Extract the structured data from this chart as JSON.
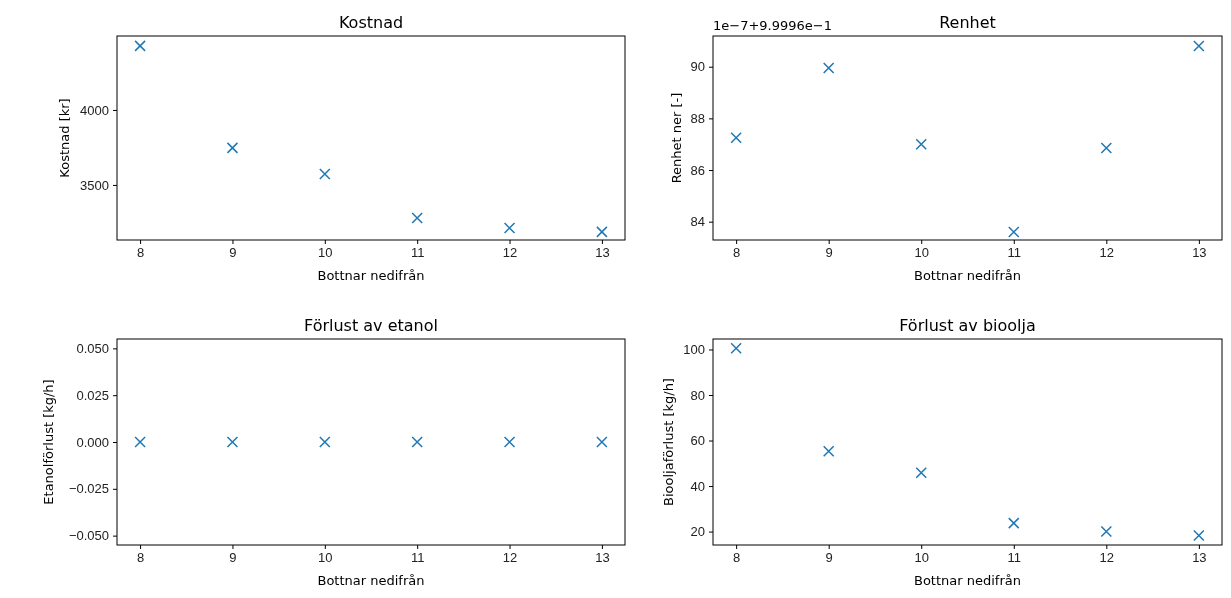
{
  "chart_data": [
    {
      "type": "scatter",
      "title": "Kostnad",
      "xlabel": "Bottnar nedifrån",
      "ylabel": "Kostnad [kr]",
      "x": [
        8,
        9,
        10,
        11,
        12,
        13
      ],
      "marker": "cross",
      "grid": false,
      "series": [
        {
          "color": "#1f77b4",
          "values": [
            4427,
            3747,
            3573,
            3280,
            3213,
            3187
          ]
        }
      ],
      "xlim": [
        7.75,
        13.25
      ],
      "xticks": [
        8,
        9,
        10,
        11,
        12,
        13
      ],
      "ylim": [
        3133,
        4493
      ],
      "yticks": [
        3500,
        4000
      ]
    },
    {
      "type": "scatter",
      "title": "Renhet",
      "xlabel": "Bottnar nedifrån",
      "ylabel": "Renhet ner [-]",
      "x": [
        8,
        9,
        10,
        11,
        12,
        13
      ],
      "marker": "cross",
      "grid": false,
      "annotations": [
        "1e−7+9.9996e−1"
      ],
      "series": [
        {
          "color": "#1f77b4",
          "values": [
            87.25,
            89.95,
            87.0,
            83.6,
            86.85,
            90.8
          ]
        }
      ],
      "xlim": [
        7.75,
        13.25
      ],
      "xticks": [
        8,
        9,
        10,
        11,
        12,
        13
      ],
      "ylim": [
        83.29,
        91.19
      ],
      "yticks": [
        84,
        86,
        88,
        90
      ]
    },
    {
      "type": "scatter",
      "title": "Förlust av etanol",
      "xlabel": "Bottnar nedifrån",
      "ylabel": "Etanolförlust [kg/h]",
      "x": [
        8,
        9,
        10,
        11,
        12,
        13
      ],
      "marker": "cross",
      "grid": false,
      "series": [
        {
          "color": "#1f77b4",
          "values": [
            0,
            0,
            0,
            0,
            0,
            0
          ]
        }
      ],
      "xlim": [
        7.75,
        13.25
      ],
      "xticks": [
        8,
        9,
        10,
        11,
        12,
        13
      ],
      "ylim": [
        -0.055,
        0.055
      ],
      "yticks": [
        {
          "value": -0.05,
          "label": "−0.050"
        },
        {
          "value": -0.025,
          "label": "−0.025"
        },
        {
          "value": 0,
          "label": "0.000"
        },
        {
          "value": 0.025,
          "label": "0.025"
        },
        {
          "value": 0.05,
          "label": "0.050"
        }
      ]
    },
    {
      "type": "scatter",
      "title": "Förlust av bioolja",
      "xlabel": "Bottnar nedifrån",
      "ylabel": "Biooljaförlust [kg/h]",
      "x": [
        8,
        9,
        10,
        11,
        12,
        13
      ],
      "marker": "cross",
      "grid": false,
      "series": [
        {
          "color": "#1f77b4",
          "values": [
            100.5,
            55.3,
            45.8,
            23.7,
            20,
            18.3
          ]
        }
      ],
      "xlim": [
        7.75,
        13.25
      ],
      "xticks": [
        8,
        9,
        10,
        11,
        12,
        13
      ],
      "ylim": [
        14.1,
        104.6
      ],
      "yticks": [
        20,
        40,
        60,
        80,
        100
      ]
    }
  ]
}
